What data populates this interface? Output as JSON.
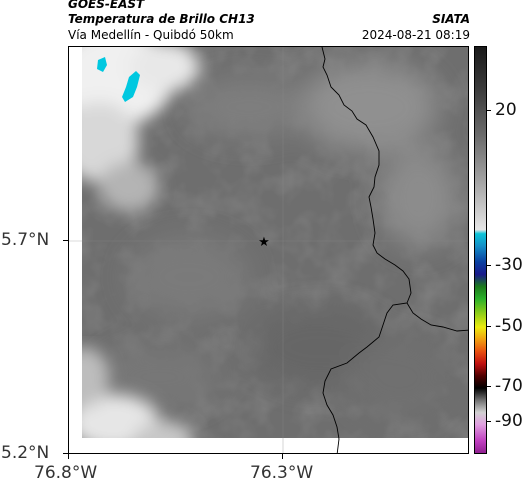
{
  "header": {
    "satellite": "GOES-EAST",
    "product": "Temperatura de Brillo CH13",
    "subtitle": "Vía Medellín - Quibdó 50km",
    "agency": "SIATA",
    "timestamp": "2024-08-21 08:19"
  },
  "axes": {
    "lat_ticks": [
      {
        "label": "5.7°N"
      },
      {
        "label": "5.2°N"
      }
    ],
    "lon_ticks": [
      {
        "label": "76.8°W"
      },
      {
        "label": "76.3°W"
      }
    ]
  },
  "colorbar": {
    "ticks": [
      {
        "label": "20"
      },
      {
        "label": "-30"
      },
      {
        "label": "-50"
      },
      {
        "label": "-70"
      },
      {
        "label": "-90"
      }
    ]
  },
  "map": {
    "marker_icon": "star-icon",
    "colors": {
      "base_gray": "#6e6e6e",
      "cold_cloud": "#00c8e0",
      "border_line": "#000000"
    }
  }
}
